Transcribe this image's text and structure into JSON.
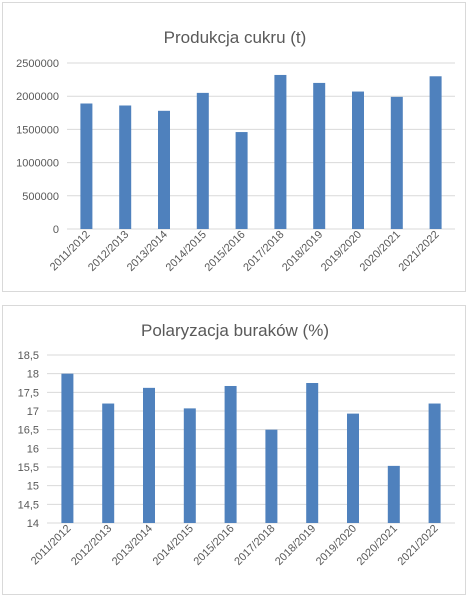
{
  "chart_data": [
    {
      "type": "bar",
      "title": "Produkcja cukru (t)",
      "categories": [
        "2011/2012",
        "2012/2013",
        "2013/2014",
        "2014/2015",
        "2015/2016",
        "2017/2018",
        "2018/2019",
        "2019/2020",
        "2020/2021",
        "2021/2022"
      ],
      "series": [
        {
          "values": [
            1890000,
            1860000,
            1780000,
            2050000,
            1460000,
            2320000,
            2200000,
            2070000,
            1990000,
            2300000
          ]
        }
      ],
      "ylim": [
        0,
        2500000
      ],
      "yticks": [
        "0",
        "500000",
        "1000000",
        "1500000",
        "2000000",
        "2500000"
      ],
      "yticks_values": [
        0,
        500000,
        1000000,
        1500000,
        2000000,
        2500000
      ],
      "grid": true,
      "color": "#4f81bd"
    },
    {
      "type": "bar",
      "title": "Polaryzacja buraków (%)",
      "categories": [
        "2011/2012",
        "2012/2013",
        "2013/2014",
        "2014/2015",
        "2015/2016",
        "2017/2018",
        "2018/2019",
        "2019/2020",
        "2020/2021",
        "2021/2022"
      ],
      "series": [
        {
          "values": [
            18.0,
            17.2,
            17.62,
            17.07,
            17.67,
            16.5,
            17.75,
            16.93,
            15.53,
            17.2
          ]
        }
      ],
      "ylim": [
        14,
        18.5
      ],
      "yticks": [
        "14",
        "14,5",
        "15",
        "15,5",
        "16",
        "16,5",
        "17",
        "17,5",
        "18",
        "18,5"
      ],
      "yticks_values": [
        14,
        14.5,
        15,
        15.5,
        16,
        16.5,
        17,
        17.5,
        18,
        18.5
      ],
      "grid": true,
      "color": "#4f81bd"
    }
  ]
}
